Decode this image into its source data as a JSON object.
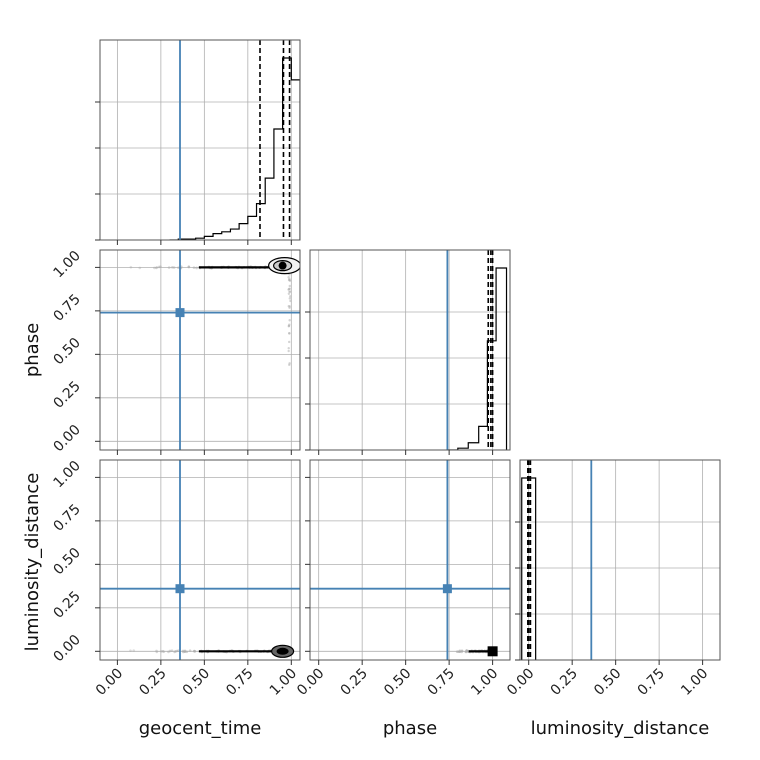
{
  "chart_data": {
    "type": "corner",
    "parameters": [
      "geocent_time",
      "phase",
      "luminosity_distance"
    ],
    "axis_labels": {
      "geocent_time": "geocent_time",
      "phase": "phase",
      "luminosity_distance": "luminosity_distance"
    },
    "ticks": [
      0.0,
      0.25,
      0.5,
      0.75,
      1.0
    ],
    "tick_labels": [
      "0.00",
      "0.25",
      "0.50",
      "0.75",
      "1.00"
    ],
    "axis_range": {
      "geocent_time": [
        -0.1,
        1.05
      ],
      "phase": [
        -0.05,
        1.1
      ],
      "luminosity_distance": [
        -0.05,
        1.1
      ]
    },
    "grid": true,
    "colors": {
      "truth": "#4682b4",
      "hist": "#000000",
      "scatter": "#aaaaaa"
    },
    "truth": {
      "geocent_time": 0.36,
      "phase": 0.74,
      "luminosity_distance": 0.36
    },
    "quantiles": {
      "geocent_time": [
        0.82,
        0.955,
        0.99
      ],
      "phase": [
        0.975,
        0.99,
        1.0
      ],
      "luminosity_distance": [
        -0.005,
        0.0,
        0.01
      ]
    },
    "histograms": {
      "geocent_time": {
        "edges": [
          0.3,
          0.35,
          0.4,
          0.45,
          0.5,
          0.55,
          0.6,
          0.65,
          0.7,
          0.75,
          0.8,
          0.85,
          0.9,
          0.95,
          1.0,
          1.05
        ],
        "counts": [
          0.0,
          0.005,
          0.005,
          0.01,
          0.02,
          0.035,
          0.045,
          0.06,
          0.09,
          0.13,
          0.2,
          0.34,
          0.61,
          1.0,
          0.88
        ]
      },
      "phase": {
        "edges": [
          0.74,
          0.8,
          0.86,
          0.92,
          0.97,
          1.02,
          1.08
        ],
        "counts": [
          0.0,
          0.01,
          0.04,
          0.13,
          0.6,
          1.0
        ]
      },
      "luminosity_distance": {
        "edges": [
          -0.04,
          0.0,
          0.04
        ],
        "counts": [
          1.0,
          1.0
        ]
      }
    },
    "panels_2d": [
      {
        "x": "geocent_time",
        "y": "phase",
        "trail": {
          "x_range": [
            0.05,
            0.98
          ],
          "y": 1.0
        },
        "tail": {
          "x": 0.99,
          "y_range": [
            0.4,
            1.0
          ]
        },
        "peak": [
          0.95,
          1.01
        ]
      },
      {
        "x": "geocent_time",
        "y": "luminosity_distance",
        "trail": {
          "x_range": [
            0.05,
            0.98
          ],
          "y": 0.0
        },
        "peak": [
          0.95,
          0.0
        ]
      },
      {
        "x": "phase",
        "y": "luminosity_distance",
        "trail": {
          "x_range": [
            0.75,
            1.0
          ],
          "y": 0.0
        },
        "peak": [
          1.0,
          0.0
        ]
      }
    ]
  }
}
